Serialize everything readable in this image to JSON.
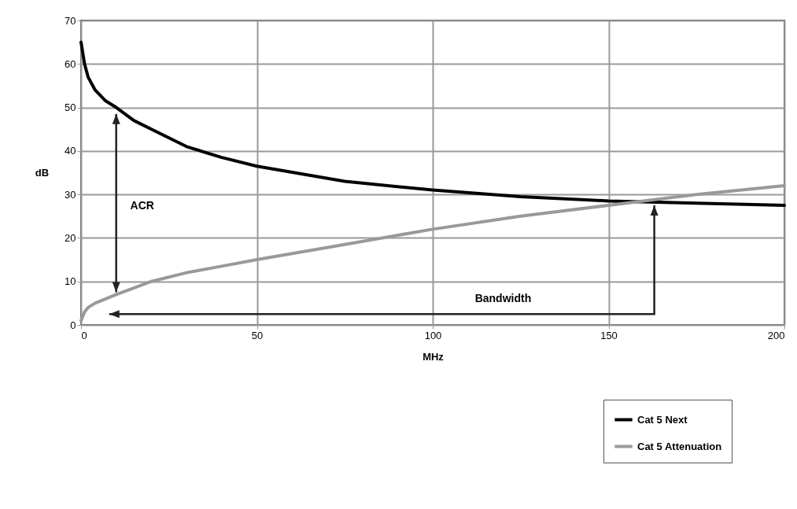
{
  "chart_data": {
    "type": "line",
    "xlabel": "MHz",
    "ylabel": "dB",
    "x": [
      0,
      1,
      2,
      4,
      7,
      10,
      15,
      20,
      30,
      40,
      50,
      75,
      100,
      125,
      150,
      175,
      200
    ],
    "series": [
      {
        "name": "Cat 5 Next",
        "color": "#000000",
        "values": [
          65,
          60,
          57,
          54,
          51.5,
          50,
          47,
          45,
          41,
          38.5,
          36.5,
          33,
          31,
          29.5,
          28.5,
          28,
          27.5
        ]
      },
      {
        "name": "Cat 5 Attenuation",
        "color": "#999999",
        "values": [
          1,
          3,
          4,
          5,
          6,
          7,
          8.5,
          10,
          12,
          13.5,
          15,
          18.5,
          22,
          25,
          27.5,
          30,
          32
        ]
      }
    ],
    "xlim": [
      0,
      200
    ],
    "xticks": [
      0,
      50,
      100,
      150,
      200
    ],
    "ylim": [
      0,
      70
    ],
    "yticks": [
      0,
      10,
      20,
      30,
      40,
      50,
      60,
      70
    ],
    "grid": true,
    "legend": "bottom right",
    "line_style": "solid",
    "annotations": [
      "ACR",
      "Bandwidth"
    ]
  }
}
